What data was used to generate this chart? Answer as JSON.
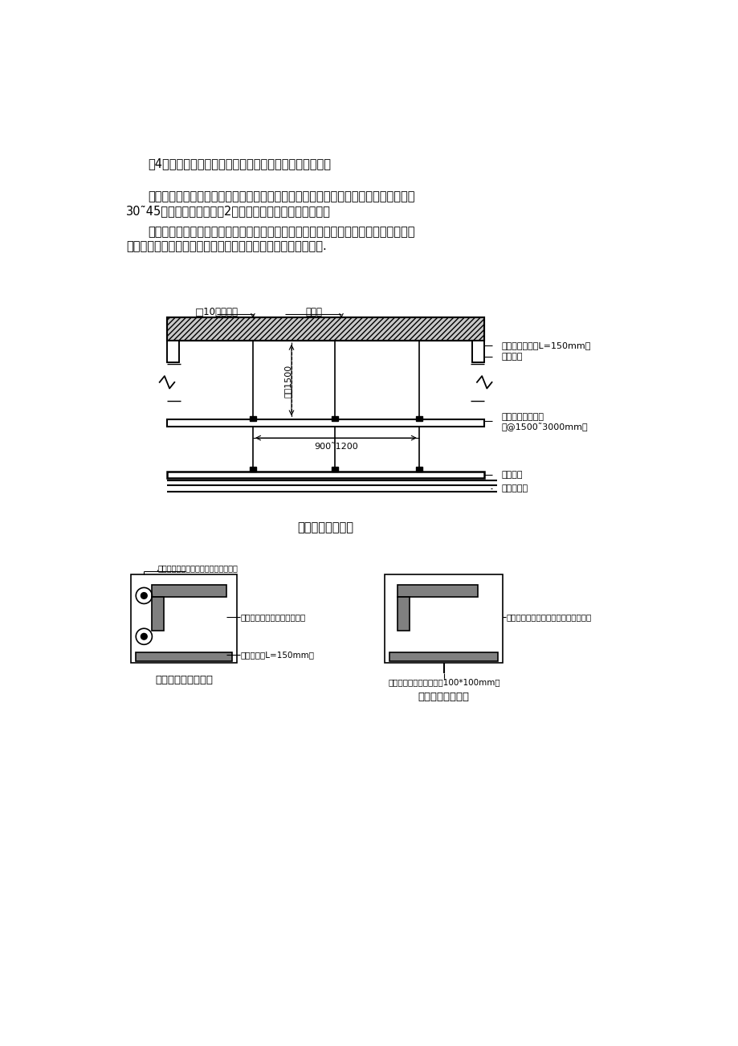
{
  "bg_color": "#ffffff",
  "page_width": 9.2,
  "page_height": 13.02,
  "para1": "（4）、数量及位置要依据结构力学计算及现场构造确定。",
  "para2_1": "在反向支撑安装的布局上，反支撑不应在同一直线上，应为梅花型分布，支撑角度应在",
  "para2_2": "30˜45度之间，间距大概在2米左右，可根据实际情况调整。",
  "para3_1": "反向支撑下端通常固定在吹杆上，但因为材料的原因不易铆接或认为效果没有直接铆接",
  "para3_2": "在主龙骨上好，现场施工中有不少是直接锹固或焊接在主龙骨上.",
  "diag_title": "吸顶内横向剖面图",
  "lbl_bolt": "□10膨胀螺栓",
  "lbl_floor": "原楼板",
  "lbl_angcode": "镀锌角锂角码（L=150mm）",
  "lbl_ang": "镀锌角锂",
  "lbl_reinf1": "镀锌角锂纵向加固",
  "lbl_reinf2": "（@1500˜3000mm）",
  "lbl_keel": "吸顶龙骨",
  "lbl_panel": "吸顶罩面板",
  "lbl_dimh": "大于1500",
  "lbl_dimw": "900˜1200",
  "left_box_title": "混凝土顶面固定方式",
  "right_box_title": "网架结构固定方式",
  "lbl_bolt2": "膨胀螺栓（将角码固定在混凝土顶面）",
  "lbl_vert_ang": "垂直方向角锂（与角码焊接）",
  "lbl_ang_code": "角锂角码（L=150mm）",
  "lbl_vert_pipe": "垂直方向角锂或圆锂管（与锂板焊接）",
  "lbl_plate": "锂板与网架固定点焊接（100*100mm）"
}
